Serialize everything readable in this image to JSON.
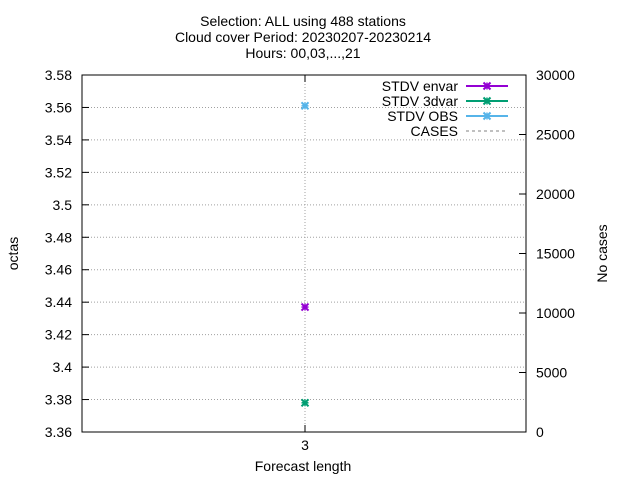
{
  "chart_data": {
    "type": "scatter",
    "title_lines": [
      "Selection: ALL using   488 stations",
      "Cloud cover   Period: 20230207-20230214",
      "Hours: 00,03,...,21"
    ],
    "xlabel": "Forecast length",
    "ylabel": "octas",
    "y2label": "No cases",
    "x_ticks": [
      3
    ],
    "ylim": [
      3.36,
      3.58
    ],
    "y_ticks": [
      3.36,
      3.38,
      3.4,
      3.42,
      3.44,
      3.46,
      3.48,
      3.5,
      3.52,
      3.54,
      3.56,
      3.58
    ],
    "y_tick_labels": [
      "3.36",
      "3.38",
      "3.4",
      "3.42",
      "3.44",
      "3.46",
      "3.48",
      "3.5",
      "3.52",
      "3.54",
      "3.56",
      "3.58"
    ],
    "y2lim": [
      0,
      30000
    ],
    "y2_ticks": [
      0,
      5000,
      10000,
      15000,
      20000,
      25000,
      30000
    ],
    "grid": true,
    "legend_position": "top-right",
    "series": [
      {
        "name": "STDV envar",
        "color": "#9400d3",
        "marker": "x-star",
        "x": [
          3
        ],
        "y": [
          3.437
        ]
      },
      {
        "name": "STDV 3dvar",
        "color": "#009e73",
        "marker": "x-star",
        "x": [
          3
        ],
        "y": [
          3.378
        ]
      },
      {
        "name": "STDV OBS",
        "color": "#56b4e9",
        "marker": "x-star",
        "x": [
          3
        ],
        "y": [
          3.561
        ]
      },
      {
        "name": "CASES",
        "color": "#808080",
        "dash": true,
        "axis": "y2",
        "x": [],
        "y": []
      }
    ]
  }
}
